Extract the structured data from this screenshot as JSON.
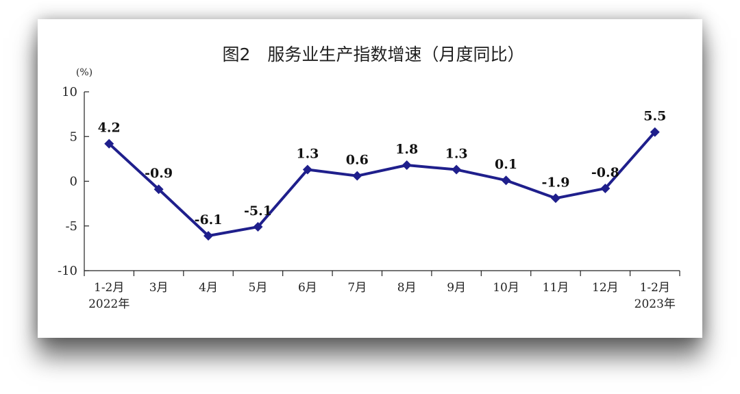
{
  "chart_data": {
    "type": "line",
    "title": "图2　服务业生产指数增速（月度同比）",
    "y_unit": "(%)",
    "ylim": [
      -10,
      10
    ],
    "yticks": [
      "10",
      "5",
      "0",
      "-5",
      "-10"
    ],
    "categories": [
      [
        "1-2月",
        "2022年"
      ],
      [
        "3月"
      ],
      [
        "4月"
      ],
      [
        "5月"
      ],
      [
        "6月"
      ],
      [
        "7月"
      ],
      [
        "8月"
      ],
      [
        "9月"
      ],
      [
        "10月"
      ],
      [
        "11月"
      ],
      [
        "12月"
      ],
      [
        "1-2月",
        "2023年"
      ]
    ],
    "values": [
      4.2,
      -0.9,
      -6.1,
      -5.1,
      1.3,
      0.6,
      1.8,
      1.3,
      0.1,
      -1.9,
      -0.8,
      5.5
    ],
    "data_labels": [
      "4.2",
      "-0.9",
      "-6.1",
      "-5.1",
      "1.3",
      "0.6",
      "1.8",
      "1.3",
      "0.1",
      "-1.9",
      "-0.8",
      "5.5"
    ],
    "line_color": "#1f1f8c",
    "grid": false,
    "legend": "none"
  }
}
